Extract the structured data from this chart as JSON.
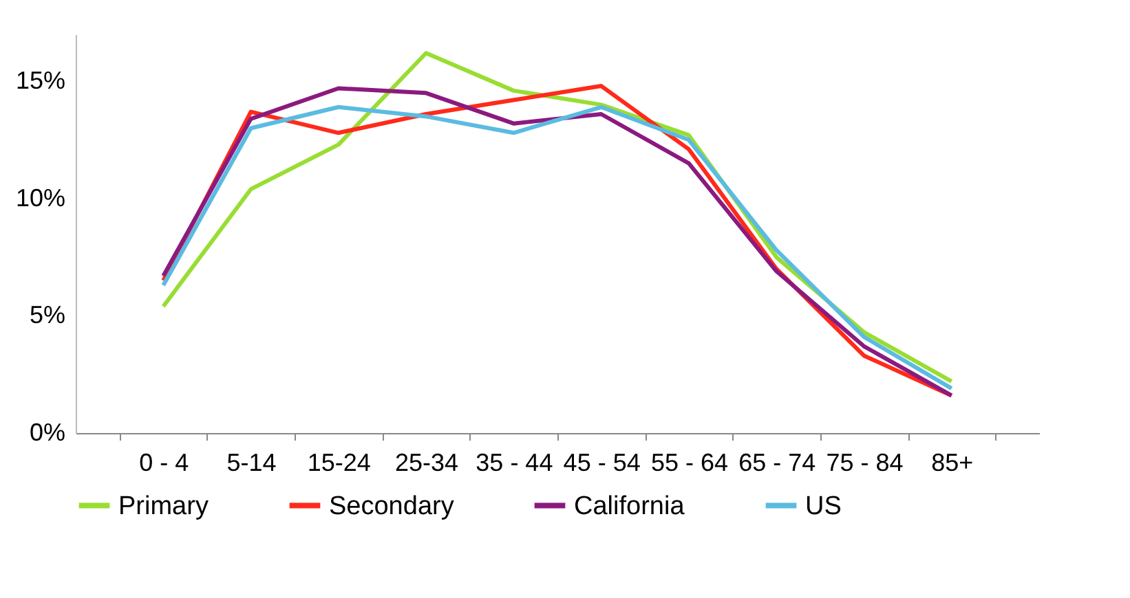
{
  "chart_data": {
    "type": "line",
    "categories": [
      "0 - 4",
      "5-14",
      "15-24",
      "25-34",
      "35 - 44",
      "45 - 54",
      "55 - 64",
      "65 - 74",
      "75 - 84",
      "85+"
    ],
    "ylim": [
      0,
      17
    ],
    "yticks": [
      {
        "value": 0,
        "label": "0%"
      },
      {
        "value": 5,
        "label": "5%"
      },
      {
        "value": 10,
        "label": "10%"
      },
      {
        "value": 15,
        "label": "15%"
      }
    ],
    "grid": false,
    "legend": "bottom",
    "marker": "none",
    "series": [
      {
        "name": "Primary",
        "color": "#99dd33",
        "values": [
          5.4,
          10.4,
          12.3,
          16.2,
          14.6,
          14.0,
          12.7,
          7.5,
          4.3,
          2.2
        ]
      },
      {
        "name": "Secondary",
        "color": "#ff2a1a",
        "values": [
          6.5,
          13.7,
          12.8,
          13.6,
          14.2,
          14.8,
          12.1,
          7.0,
          3.3,
          1.6
        ]
      },
      {
        "name": "California",
        "color": "#8b1a7f",
        "values": [
          6.7,
          13.4,
          14.7,
          14.5,
          13.2,
          13.6,
          11.5,
          6.9,
          3.7,
          1.6
        ]
      },
      {
        "name": "US",
        "color": "#5bbbe0",
        "values": [
          6.3,
          13.0,
          13.9,
          13.5,
          12.8,
          13.9,
          12.5,
          7.8,
          4.1,
          1.9
        ]
      }
    ]
  }
}
